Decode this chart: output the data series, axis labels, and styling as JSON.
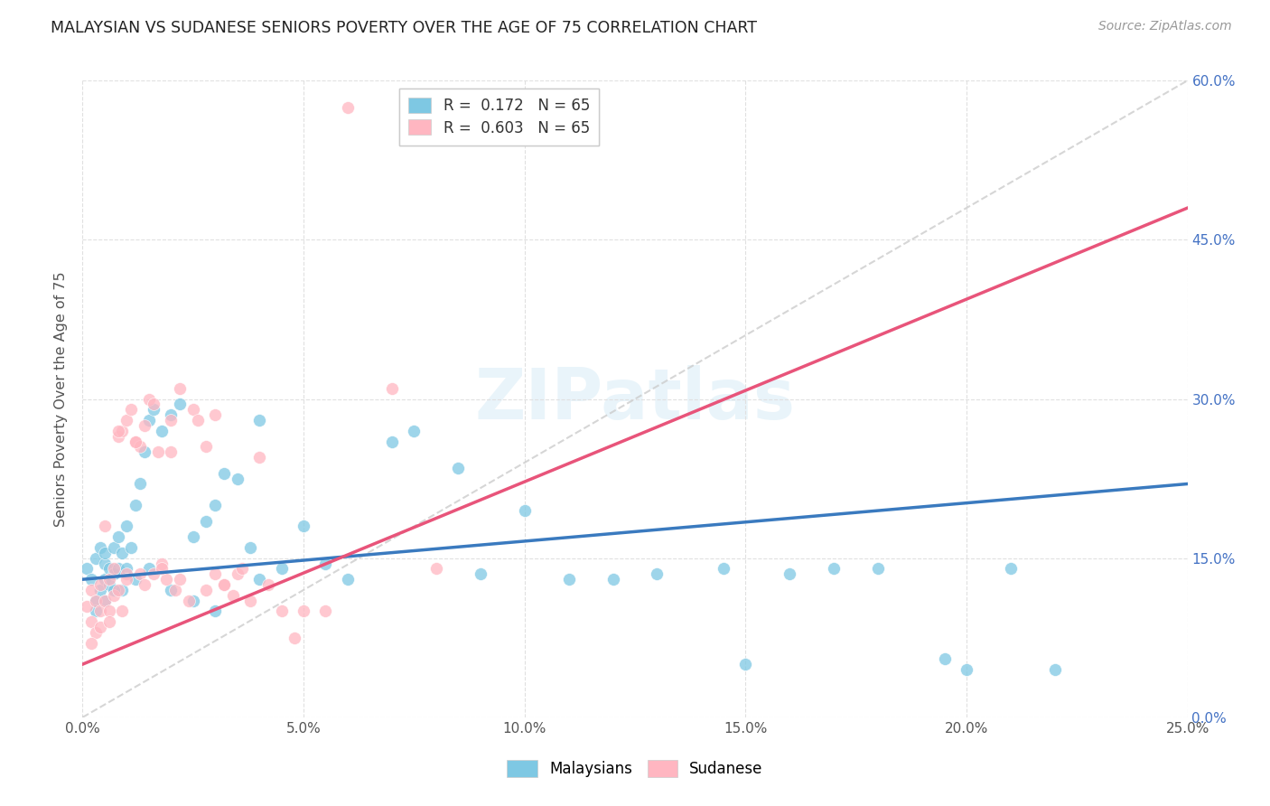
{
  "title": "MALAYSIAN VS SUDANESE SENIORS POVERTY OVER THE AGE OF 75 CORRELATION CHART",
  "source": "Source: ZipAtlas.com",
  "ylabel": "Seniors Poverty Over the Age of 75",
  "xlabel_ticks": [
    "0.0%",
    "5.0%",
    "10.0%",
    "15.0%",
    "20.0%",
    "25.0%"
  ],
  "xlabel_vals": [
    0,
    5,
    10,
    15,
    20,
    25
  ],
  "ylabel_ticks_right": [
    "0.0%",
    "15.0%",
    "30.0%",
    "45.0%",
    "60.0%"
  ],
  "ylabel_vals_right": [
    0,
    15,
    30,
    45,
    60
  ],
  "xlim": [
    0,
    25
  ],
  "ylim": [
    0,
    60
  ],
  "R_malaysian": 0.172,
  "N_malaysian": 65,
  "R_sudanese": 0.603,
  "N_sudanese": 65,
  "color_malaysian": "#7ec8e3",
  "color_sudanese": "#ffb6c1",
  "color_line_malaysian": "#3a7abf",
  "color_line_sudanese": "#e8547a",
  "color_diag": "#cccccc",
  "background_color": "#ffffff",
  "grid_color": "#e0e0e0",
  "malaysian_x": [
    0.1,
    0.2,
    0.3,
    0.3,
    0.4,
    0.4,
    0.5,
    0.5,
    0.5,
    0.6,
    0.6,
    0.7,
    0.7,
    0.8,
    0.8,
    0.9,
    0.9,
    1.0,
    1.0,
    1.1,
    1.2,
    1.3,
    1.4,
    1.5,
    1.6,
    1.8,
    2.0,
    2.2,
    2.5,
    2.8,
    3.0,
    3.2,
    3.5,
    3.8,
    4.0,
    4.5,
    5.0,
    5.5,
    6.0,
    7.0,
    7.5,
    8.5,
    9.0,
    10.0,
    11.0,
    12.0,
    13.0,
    14.5,
    15.0,
    16.0,
    17.0,
    18.0,
    19.5,
    20.0,
    21.0,
    22.0,
    0.3,
    0.5,
    0.7,
    1.2,
    1.5,
    2.0,
    2.5,
    3.0,
    4.0
  ],
  "malaysian_y": [
    14.0,
    13.0,
    15.0,
    11.0,
    16.0,
    12.0,
    14.5,
    13.0,
    15.5,
    12.5,
    14.0,
    16.0,
    13.5,
    17.0,
    14.0,
    15.5,
    12.0,
    18.0,
    14.0,
    16.0,
    20.0,
    22.0,
    25.0,
    28.0,
    29.0,
    27.0,
    28.5,
    29.5,
    17.0,
    18.5,
    20.0,
    23.0,
    22.5,
    16.0,
    28.0,
    14.0,
    18.0,
    14.5,
    13.0,
    26.0,
    27.0,
    23.5,
    13.5,
    19.5,
    13.0,
    13.0,
    13.5,
    14.0,
    5.0,
    13.5,
    14.0,
    14.0,
    5.5,
    4.5,
    14.0,
    4.5,
    10.0,
    11.0,
    12.0,
    13.0,
    14.0,
    12.0,
    11.0,
    10.0,
    13.0
  ],
  "sudanese_x": [
    0.1,
    0.2,
    0.2,
    0.3,
    0.3,
    0.4,
    0.4,
    0.5,
    0.5,
    0.6,
    0.6,
    0.7,
    0.7,
    0.8,
    0.8,
    0.9,
    0.9,
    1.0,
    1.0,
    1.1,
    1.2,
    1.3,
    1.3,
    1.4,
    1.5,
    1.6,
    1.7,
    1.8,
    1.9,
    2.0,
    2.1,
    2.2,
    2.5,
    2.8,
    3.0,
    3.2,
    3.5,
    3.8,
    4.0,
    4.2,
    4.5,
    0.2,
    0.4,
    0.6,
    0.8,
    1.0,
    1.2,
    1.4,
    1.6,
    1.8,
    2.0,
    2.2,
    2.4,
    2.6,
    2.8,
    3.0,
    3.2,
    3.4,
    3.6,
    4.8,
    5.0,
    5.5,
    6.0,
    7.0,
    8.0
  ],
  "sudanese_y": [
    10.5,
    9.0,
    12.0,
    8.0,
    11.0,
    10.0,
    12.5,
    18.0,
    11.0,
    10.0,
    13.0,
    11.5,
    14.0,
    26.5,
    12.0,
    27.0,
    10.0,
    28.0,
    13.5,
    29.0,
    26.0,
    25.5,
    13.5,
    27.5,
    30.0,
    29.5,
    25.0,
    14.5,
    13.0,
    28.0,
    12.0,
    31.0,
    29.0,
    25.5,
    28.5,
    12.5,
    13.5,
    11.0,
    24.5,
    12.5,
    10.0,
    7.0,
    8.5,
    9.0,
    27.0,
    13.0,
    26.0,
    12.5,
    13.5,
    14.0,
    25.0,
    13.0,
    11.0,
    28.0,
    12.0,
    13.5,
    12.5,
    11.5,
    14.0,
    7.5,
    10.0,
    10.0,
    57.5,
    31.0,
    14.0
  ]
}
